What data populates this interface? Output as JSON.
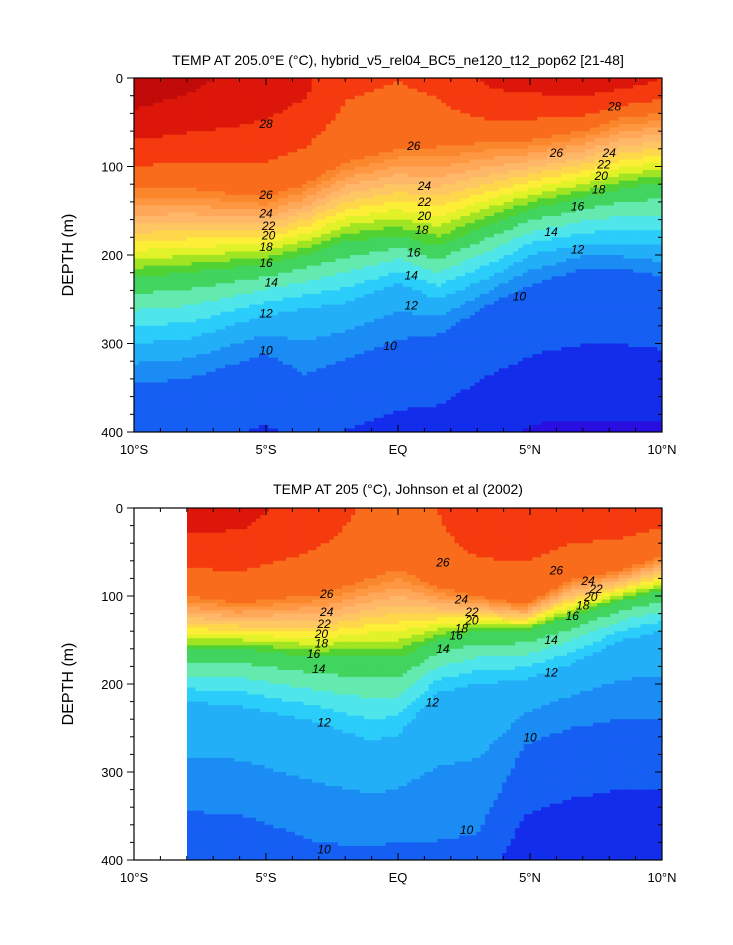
{
  "chart_data": [
    {
      "type": "contour",
      "title": "TEMP AT 205.0°E (°C), hybrid_v5_rel04_BC5_ne120_t12_pop62 [21-48]",
      "ylabel": "DEPTH (m)",
      "xlabel": "",
      "x_tick_labels": [
        "10°S",
        "5°S",
        "EQ",
        "5°N",
        "10°N"
      ],
      "x_tick_values": [
        -10,
        -5,
        0,
        5,
        10
      ],
      "y_tick_labels": [
        "0",
        "100",
        "200",
        "300",
        "400"
      ],
      "y_tick_values": [
        0,
        100,
        200,
        300,
        400
      ],
      "xlim": [
        -10,
        10
      ],
      "ylim": [
        400,
        0
      ],
      "data_xlim": [
        -10,
        10
      ],
      "contour_interval": 1,
      "labeled_contours": [
        {
          "label": "28",
          "x": -5.0,
          "y": 52
        },
        {
          "label": "28",
          "x": 8.2,
          "y": 32
        },
        {
          "label": "26",
          "x": 0.6,
          "y": 77
        },
        {
          "label": "26",
          "x": 6.0,
          "y": 85
        },
        {
          "label": "26",
          "x": -5.0,
          "y": 132
        },
        {
          "label": "24",
          "x": 1.0,
          "y": 122
        },
        {
          "label": "24",
          "x": 8.0,
          "y": 85
        },
        {
          "label": "24",
          "x": -5.0,
          "y": 153
        },
        {
          "label": "22",
          "x": 1.0,
          "y": 140
        },
        {
          "label": "22",
          "x": 7.8,
          "y": 98
        },
        {
          "label": "22",
          "x": -4.9,
          "y": 167
        },
        {
          "label": "20",
          "x": 1.0,
          "y": 156
        },
        {
          "label": "20",
          "x": 7.7,
          "y": 111
        },
        {
          "label": "20",
          "x": -4.9,
          "y": 178
        },
        {
          "label": "18",
          "x": 0.9,
          "y": 172
        },
        {
          "label": "18",
          "x": 7.6,
          "y": 126
        },
        {
          "label": "18",
          "x": -5.0,
          "y": 191
        },
        {
          "label": "16",
          "x": 0.6,
          "y": 197
        },
        {
          "label": "16",
          "x": 6.8,
          "y": 145
        },
        {
          "label": "16",
          "x": -5.0,
          "y": 209
        },
        {
          "label": "14",
          "x": 0.5,
          "y": 223
        },
        {
          "label": "14",
          "x": 5.8,
          "y": 174
        },
        {
          "label": "14",
          "x": -4.8,
          "y": 231
        },
        {
          "label": "12",
          "x": 0.5,
          "y": 257
        },
        {
          "label": "12",
          "x": 6.8,
          "y": 194
        },
        {
          "label": "12",
          "x": -5.0,
          "y": 266
        },
        {
          "label": "10",
          "x": -5.0,
          "y": 308
        },
        {
          "label": "10",
          "x": -0.3,
          "y": 303
        },
        {
          "label": "10",
          "x": 4.6,
          "y": 247
        }
      ]
    },
    {
      "type": "contour",
      "title": "TEMP AT 205 (°C), Johnson et al (2002)",
      "ylabel": "DEPTH (m)",
      "xlabel": "",
      "x_tick_labels": [
        "10°S",
        "5°S",
        "EQ",
        "5°N",
        "10°N"
      ],
      "x_tick_values": [
        -10,
        -5,
        0,
        5,
        10
      ],
      "y_tick_labels": [
        "0",
        "100",
        "200",
        "300",
        "400"
      ],
      "y_tick_values": [
        0,
        100,
        200,
        300,
        400
      ],
      "xlim": [
        -10,
        10
      ],
      "ylim": [
        400,
        0
      ],
      "data_xlim": [
        -8,
        10
      ],
      "contour_interval": 1,
      "labeled_contours": [
        {
          "label": "26",
          "x": -2.7,
          "y": 98
        },
        {
          "label": "24",
          "x": -2.7,
          "y": 118
        },
        {
          "label": "22",
          "x": -2.8,
          "y": 132
        },
        {
          "label": "20",
          "x": -2.9,
          "y": 143
        },
        {
          "label": "18",
          "x": -2.9,
          "y": 154
        },
        {
          "label": "16",
          "x": -3.2,
          "y": 166
        },
        {
          "label": "14",
          "x": -3.0,
          "y": 183
        },
        {
          "label": "12",
          "x": -2.8,
          "y": 244
        },
        {
          "label": "10",
          "x": -2.8,
          "y": 388
        },
        {
          "label": "26",
          "x": 1.7,
          "y": 62
        },
        {
          "label": "24",
          "x": 2.4,
          "y": 104
        },
        {
          "label": "22",
          "x": 2.8,
          "y": 118
        },
        {
          "label": "20",
          "x": 2.8,
          "y": 128
        },
        {
          "label": "18",
          "x": 2.4,
          "y": 137
        },
        {
          "label": "16",
          "x": 2.2,
          "y": 145
        },
        {
          "label": "14",
          "x": 1.7,
          "y": 160
        },
        {
          "label": "12",
          "x": 1.3,
          "y": 221
        },
        {
          "label": "10",
          "x": 2.6,
          "y": 366
        },
        {
          "label": "26",
          "x": 6.0,
          "y": 71
        },
        {
          "label": "24",
          "x": 7.2,
          "y": 83
        },
        {
          "label": "22",
          "x": 7.5,
          "y": 92
        },
        {
          "label": "20",
          "x": 7.3,
          "y": 101
        },
        {
          "label": "18",
          "x": 7.0,
          "y": 111
        },
        {
          "label": "16",
          "x": 6.6,
          "y": 123
        },
        {
          "label": "14",
          "x": 5.8,
          "y": 150
        },
        {
          "label": "12",
          "x": 5.8,
          "y": 187
        },
        {
          "label": "10",
          "x": 5.0,
          "y": 261
        }
      ]
    }
  ]
}
